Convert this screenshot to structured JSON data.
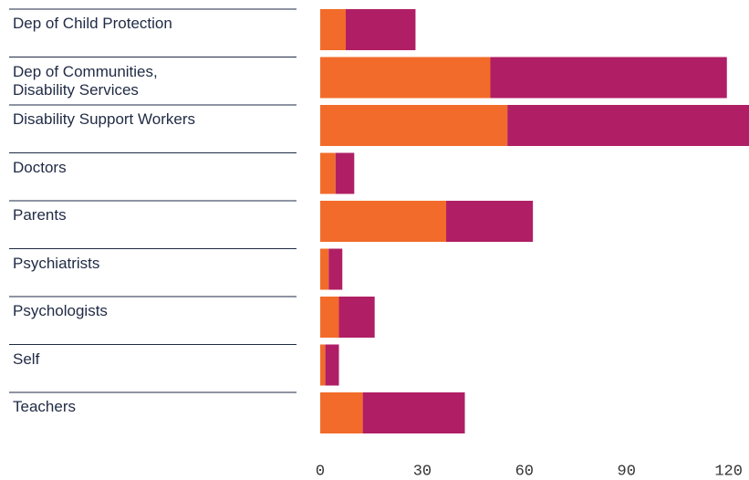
{
  "chart_data": {
    "type": "stacked-barh",
    "categories": [
      "Dep of Child Protection",
      "Dep of Communities,\nDisability Services",
      "Disability Support Workers",
      "Doctors",
      "Parents",
      "Psychiatrists",
      "Psychologists",
      "Self",
      "Teachers"
    ],
    "series": [
      {
        "color": "#f26b2a",
        "values": [
          7.5,
          50,
          55,
          4.5,
          37,
          2.5,
          5.5,
          1.5,
          12.5
        ]
      },
      {
        "color": "#b01f65",
        "values": [
          20.5,
          69.5,
          71,
          5.5,
          25.5,
          4,
          10.5,
          4,
          30
        ]
      }
    ],
    "xlim": [
      0,
      126
    ],
    "xticks": [
      0,
      30,
      60,
      90,
      120
    ]
  }
}
